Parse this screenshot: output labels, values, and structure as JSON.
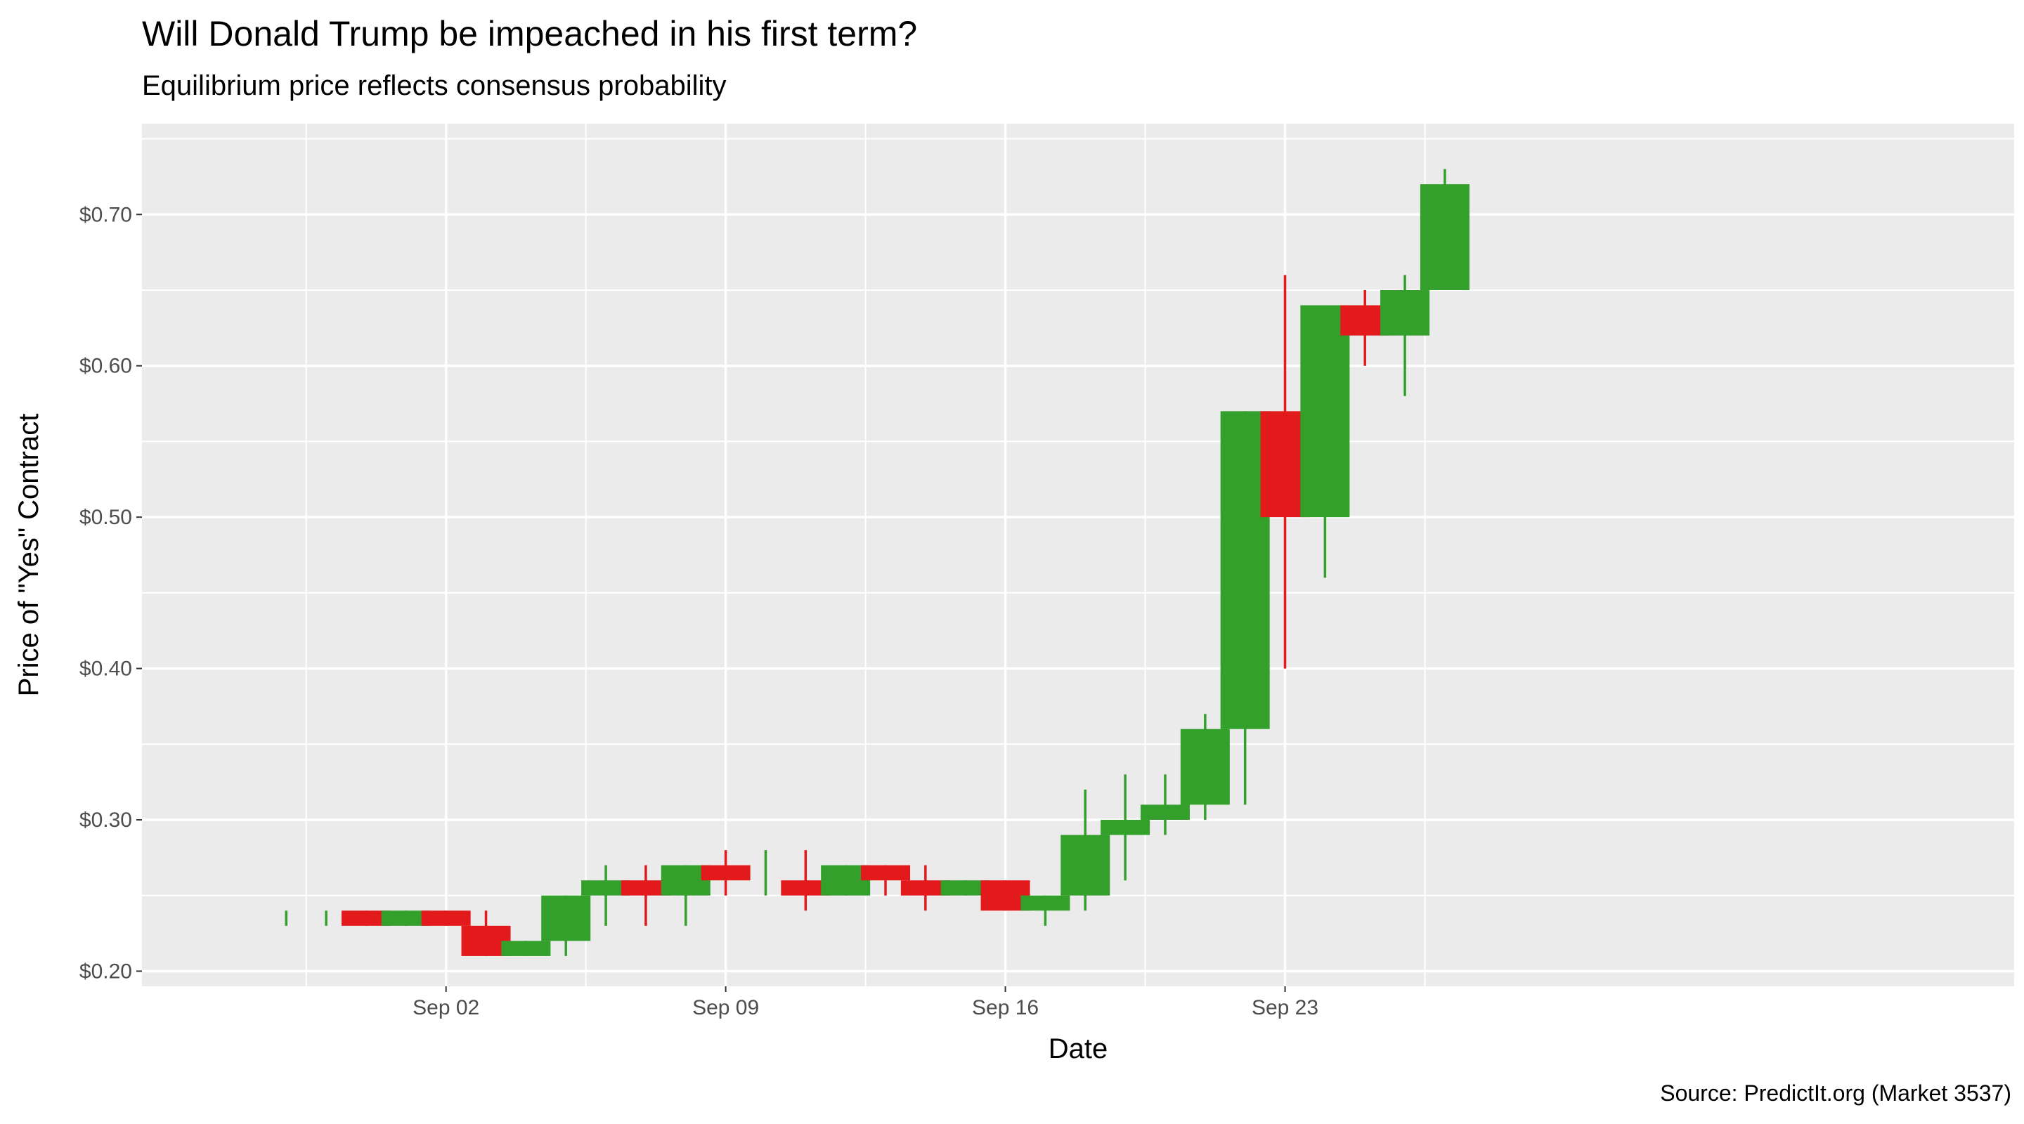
{
  "title": "Will Donald Trump be impeached in his first term?",
  "subtitle": "Equilibrium price reflects consensus probability",
  "caption": "Source: PredictIt.org (Market 3537)",
  "colors": {
    "panel_background": "#ebebeb",
    "grid_major": "#ffffff",
    "up": "#33a02c",
    "down": "#e31a1c",
    "tick_text": "#4d4d4d",
    "tick_mark": "#333333"
  },
  "chart_data": {
    "type": "candlestick",
    "xlabel": "Date",
    "ylabel": "Price of \"Yes\" Contract",
    "xlim": [
      "Aug 28",
      "Oct 01"
    ],
    "ylim": [
      0.19,
      0.76
    ],
    "grid": true,
    "x_ticks": [
      "Sep 02",
      "Sep 09",
      "Sep 16",
      "Sep 23"
    ],
    "y_ticks": [
      {
        "value": 0.2,
        "label": "$0.20"
      },
      {
        "value": 0.3,
        "label": "$0.30"
      },
      {
        "value": 0.4,
        "label": "$0.40"
      },
      {
        "value": 0.5,
        "label": "$0.50"
      },
      {
        "value": 0.6,
        "label": "$0.60"
      },
      {
        "value": 0.7,
        "label": "$0.70"
      }
    ],
    "candles": [
      {
        "date": "Aug 29",
        "open": 0.24,
        "high": 0.24,
        "low": 0.23,
        "close": 0.24
      },
      {
        "date": "Aug 30",
        "open": 0.24,
        "high": 0.24,
        "low": 0.23,
        "close": 0.24
      },
      {
        "date": "Aug 31",
        "open": 0.24,
        "high": 0.24,
        "low": 0.23,
        "close": 0.23
      },
      {
        "date": "Sep 01",
        "open": 0.23,
        "high": 0.24,
        "low": 0.23,
        "close": 0.24
      },
      {
        "date": "Sep 02",
        "open": 0.24,
        "high": 0.24,
        "low": 0.23,
        "close": 0.23
      },
      {
        "date": "Sep 03",
        "open": 0.23,
        "high": 0.24,
        "low": 0.21,
        "close": 0.21
      },
      {
        "date": "Sep 04",
        "open": 0.21,
        "high": 0.22,
        "low": 0.21,
        "close": 0.22
      },
      {
        "date": "Sep 05",
        "open": 0.22,
        "high": 0.25,
        "low": 0.21,
        "close": 0.25
      },
      {
        "date": "Sep 06",
        "open": 0.25,
        "high": 0.27,
        "low": 0.23,
        "close": 0.26
      },
      {
        "date": "Sep 07",
        "open": 0.26,
        "high": 0.27,
        "low": 0.23,
        "close": 0.25
      },
      {
        "date": "Sep 08",
        "open": 0.25,
        "high": 0.27,
        "low": 0.23,
        "close": 0.27
      },
      {
        "date": "Sep 09",
        "open": 0.27,
        "high": 0.28,
        "low": 0.25,
        "close": 0.26
      },
      {
        "date": "Sep 10",
        "open": 0.26,
        "high": 0.28,
        "low": 0.25,
        "close": 0.26
      },
      {
        "date": "Sep 11",
        "open": 0.26,
        "high": 0.28,
        "low": 0.24,
        "close": 0.25
      },
      {
        "date": "Sep 12",
        "open": 0.25,
        "high": 0.27,
        "low": 0.25,
        "close": 0.27
      },
      {
        "date": "Sep 13",
        "open": 0.27,
        "high": 0.27,
        "low": 0.25,
        "close": 0.26
      },
      {
        "date": "Sep 14",
        "open": 0.26,
        "high": 0.27,
        "low": 0.24,
        "close": 0.25
      },
      {
        "date": "Sep 15",
        "open": 0.25,
        "high": 0.26,
        "low": 0.25,
        "close": 0.26
      },
      {
        "date": "Sep 16",
        "open": 0.26,
        "high": 0.26,
        "low": 0.24,
        "close": 0.24
      },
      {
        "date": "Sep 17",
        "open": 0.24,
        "high": 0.25,
        "low": 0.23,
        "close": 0.25
      },
      {
        "date": "Sep 18",
        "open": 0.25,
        "high": 0.32,
        "low": 0.24,
        "close": 0.29
      },
      {
        "date": "Sep 19",
        "open": 0.29,
        "high": 0.33,
        "low": 0.26,
        "close": 0.3
      },
      {
        "date": "Sep 20",
        "open": 0.3,
        "high": 0.33,
        "low": 0.29,
        "close": 0.31
      },
      {
        "date": "Sep 21",
        "open": 0.31,
        "high": 0.37,
        "low": 0.3,
        "close": 0.36
      },
      {
        "date": "Sep 22",
        "open": 0.36,
        "high": 0.57,
        "low": 0.31,
        "close": 0.57
      },
      {
        "date": "Sep 23",
        "open": 0.57,
        "high": 0.66,
        "low": 0.4,
        "close": 0.5
      },
      {
        "date": "Sep 24",
        "open": 0.5,
        "high": 0.64,
        "low": 0.46,
        "close": 0.64
      },
      {
        "date": "Sep 25",
        "open": 0.64,
        "high": 0.65,
        "low": 0.6,
        "close": 0.62
      },
      {
        "date": "Sep 26",
        "open": 0.62,
        "high": 0.66,
        "low": 0.58,
        "close": 0.65
      },
      {
        "date": "Sep 27",
        "open": 0.65,
        "high": 0.73,
        "low": 0.65,
        "close": 0.72
      }
    ]
  }
}
